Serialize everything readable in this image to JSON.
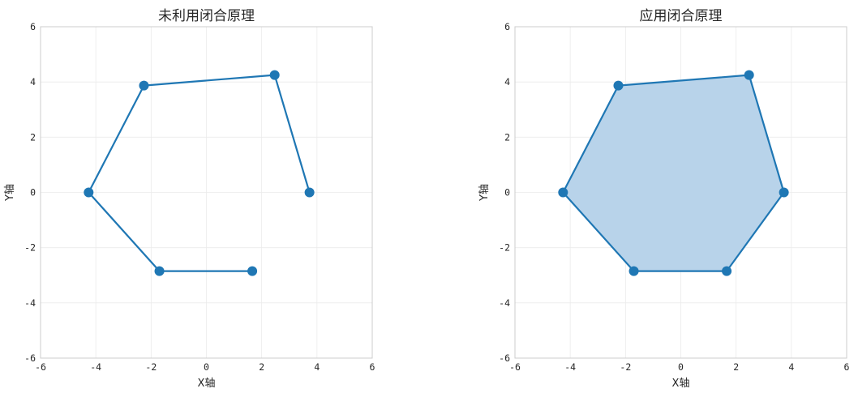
{
  "chart_data": [
    {
      "type": "line",
      "title": "未利用闭合原理",
      "xlabel": "X轴",
      "ylabel": "Y轴",
      "xlim": [
        -6,
        6
      ],
      "ylim": [
        -6,
        6
      ],
      "xticks": [
        -6,
        -4,
        -2,
        0,
        2,
        4,
        6
      ],
      "yticks": [
        -6,
        -4,
        -2,
        0,
        2,
        4,
        6
      ],
      "grid": true,
      "closed": false,
      "filled": false,
      "color": "#1f77b4",
      "series": [
        {
          "x": [
            3.73,
            2.47,
            -2.26,
            -4.26,
            -1.7,
            1.66
          ],
          "y": [
            0.0,
            4.25,
            3.87,
            0.0,
            -2.85,
            -2.85
          ]
        }
      ]
    },
    {
      "type": "area",
      "title": "应用闭合原理",
      "xlabel": "X轴",
      "ylabel": "Y轴",
      "xlim": [
        -6,
        6
      ],
      "ylim": [
        -6,
        6
      ],
      "xticks": [
        -6,
        -4,
        -2,
        0,
        2,
        4,
        6
      ],
      "yticks": [
        -6,
        -4,
        -2,
        0,
        2,
        4,
        6
      ],
      "grid": true,
      "closed": true,
      "filled": true,
      "color": "#1f77b4",
      "fill_color": "#b8d3ea",
      "series": [
        {
          "x": [
            3.73,
            2.47,
            -2.26,
            -4.26,
            -1.7,
            1.66
          ],
          "y": [
            0.0,
            4.25,
            3.87,
            0.0,
            -2.85,
            -2.85
          ]
        }
      ]
    }
  ]
}
